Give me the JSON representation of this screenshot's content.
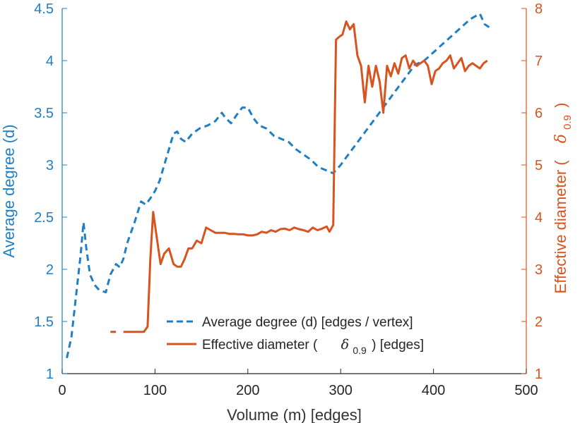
{
  "chart_data": {
    "type": "line",
    "title": "",
    "xlabel": "Volume (m) [edges]",
    "xlim": [
      0,
      500
    ],
    "x_ticks": [
      "0",
      "100",
      "200",
      "300",
      "400",
      "500"
    ],
    "grid": false,
    "legend_position": "bottom-center",
    "axes": {
      "left": {
        "label": "Average degree (d)",
        "ylim": [
          1,
          4.5
        ],
        "ticks": [
          "1",
          "1.5",
          "2",
          "2.5",
          "3",
          "3.5",
          "4",
          "4.5"
        ],
        "color": "#1f7fc4"
      },
      "right": {
        "label_prefix": "Effective diameter (",
        "label_symbol": "δ",
        "label_subscript": "0.9",
        "label_suffix": ")",
        "ylim": [
          1,
          8
        ],
        "ticks": [
          "1",
          "2",
          "3",
          "4",
          "5",
          "6",
          "7",
          "8"
        ],
        "color": "#d9531e"
      }
    },
    "series": [
      {
        "name": "Average degree (d) [edges / vertex]",
        "axis": "left",
        "style": "dashed",
        "color": "#1f7fc4",
        "x": [
          5,
          10,
          15,
          20,
          23,
          26,
          30,
          35,
          40,
          47,
          52,
          58,
          62,
          66,
          70,
          78,
          85,
          90,
          95,
          100,
          105,
          110,
          115,
          120,
          124,
          128,
          133,
          140,
          148,
          157,
          165,
          172,
          176,
          182,
          188,
          194,
          200,
          206,
          212,
          220,
          228,
          236,
          244,
          252,
          260,
          268,
          276,
          284,
          292,
          300,
          310,
          320,
          330,
          340,
          350,
          360,
          370,
          380,
          390,
          400,
          410,
          420,
          430,
          440,
          450,
          455,
          460
        ],
        "values": [
          1.15,
          1.35,
          1.75,
          2.15,
          2.45,
          2.2,
          1.95,
          1.85,
          1.8,
          1.78,
          1.95,
          2.05,
          2.02,
          2.1,
          2.25,
          2.45,
          2.65,
          2.62,
          2.68,
          2.75,
          2.85,
          3.0,
          3.15,
          3.3,
          3.32,
          3.25,
          3.22,
          3.3,
          3.35,
          3.38,
          3.42,
          3.5,
          3.45,
          3.4,
          3.48,
          3.55,
          3.55,
          3.45,
          3.38,
          3.35,
          3.28,
          3.25,
          3.22,
          3.15,
          3.1,
          3.05,
          2.98,
          2.95,
          2.92,
          3.0,
          3.12,
          3.24,
          3.36,
          3.48,
          3.6,
          3.72,
          3.84,
          3.96,
          4.0,
          4.08,
          4.16,
          4.24,
          4.32,
          4.4,
          4.45,
          4.35,
          4.32
        ]
      },
      {
        "name": "Effective diameter (δ0.9) [edges]",
        "axis": "right",
        "style": "solid",
        "color": "#d9531e",
        "x": [
          52,
          58,
          62,
          66,
          70,
          75,
          80,
          85,
          88,
          92,
          95,
          98,
          102,
          106,
          110,
          115,
          120,
          124,
          128,
          132,
          136,
          140,
          145,
          150,
          155,
          160,
          165,
          170,
          175,
          180,
          185,
          190,
          195,
          200,
          205,
          210,
          215,
          220,
          225,
          230,
          235,
          240,
          245,
          250,
          255,
          260,
          265,
          270,
          275,
          280,
          285,
          288,
          292,
          295,
          298,
          302,
          306,
          310,
          314,
          318,
          322,
          326,
          330,
          334,
          338,
          342,
          346,
          350,
          354,
          358,
          362,
          366,
          370,
          374,
          378,
          382,
          386,
          390,
          394,
          398,
          402,
          406,
          410,
          414,
          418,
          422,
          426,
          430,
          434,
          438,
          442,
          446,
          450,
          454,
          458
        ],
        "values": [
          1.8,
          1.8,
          null,
          1.8,
          1.8,
          1.8,
          1.8,
          1.8,
          1.8,
          1.9,
          3.2,
          4.1,
          3.6,
          3.1,
          3.3,
          3.4,
          3.1,
          3.05,
          3.05,
          3.2,
          3.4,
          3.4,
          3.55,
          3.5,
          3.8,
          3.75,
          3.7,
          3.7,
          3.7,
          3.68,
          3.68,
          3.67,
          3.67,
          3.65,
          3.65,
          3.67,
          3.72,
          3.7,
          3.75,
          3.72,
          3.77,
          3.78,
          3.75,
          3.8,
          3.77,
          3.75,
          3.72,
          3.8,
          3.75,
          3.78,
          3.82,
          3.72,
          3.85,
          7.4,
          7.45,
          7.5,
          7.75,
          7.6,
          7.7,
          7.1,
          6.9,
          6.2,
          6.9,
          6.5,
          6.9,
          6.6,
          6.0,
          6.9,
          6.7,
          6.95,
          6.75,
          7.05,
          7.1,
          6.85,
          7.0,
          6.9,
          6.95,
          7.0,
          6.9,
          6.55,
          6.8,
          6.85,
          6.95,
          7.0,
          7.1,
          6.85,
          6.95,
          7.05,
          6.8,
          6.9,
          6.95,
          6.9,
          6.85,
          6.95,
          7.0
        ]
      }
    ],
    "legend": [
      {
        "label": "Average degree (d) [edges / vertex]",
        "style": "dashed",
        "color": "#1f7fc4"
      },
      {
        "label_prefix": "Effective diameter (",
        "label_symbol": "δ",
        "label_subscript": "0.9",
        "label_suffix": ") [edges]",
        "style": "solid",
        "color": "#d9531e"
      }
    ]
  }
}
